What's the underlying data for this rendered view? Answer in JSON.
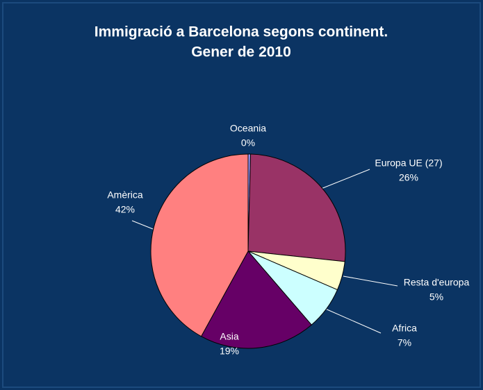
{
  "chart_data": {
    "type": "pie",
    "title": "Immigració a Barcelona segons continent.",
    "subtitle": "Gener de 2010",
    "categories": [
      "Oceania",
      "Europa UE (27)",
      "Resta d'europa",
      "Africa",
      "Asia",
      "Amèrica"
    ],
    "values": [
      0.4,
      26.3,
      4.8,
      7.2,
      19.3,
      42
    ],
    "value_labels": [
      "0%",
      "26%",
      "5%",
      "7%",
      "19%",
      "42%"
    ],
    "colors": [
      "#9999ff",
      "#993366",
      "#ffffcc",
      "#ccffff",
      "#660066",
      "#ff8080"
    ]
  }
}
